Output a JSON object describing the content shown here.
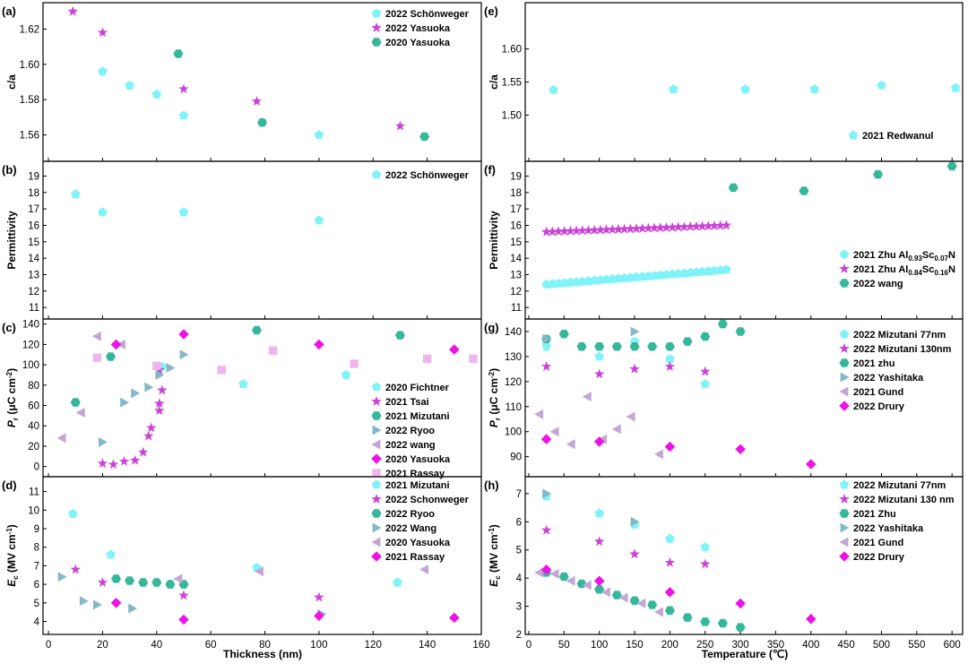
{
  "chart_data": [
    {
      "panel": "(a)",
      "type": "scatter",
      "ylabel": "c/a",
      "ylim": [
        1.545,
        1.635
      ],
      "yticks": [
        "1.56",
        "1.58",
        "1.60",
        "1.62"
      ],
      "yticks_num": [
        1.56,
        1.58,
        1.6,
        1.62
      ],
      "series": [
        {
          "name": "2022 Schönweger",
          "marker": "pentagon",
          "color": "#7ff3f7",
          "x": [
            20,
            30,
            40,
            50,
            100
          ],
          "y": [
            1.596,
            1.588,
            1.583,
            1.571,
            1.56
          ]
        },
        {
          "name": "2022 Yasuoka",
          "marker": "star",
          "color": "#c944d6",
          "x": [
            9,
            20,
            50,
            77,
            130
          ],
          "y": [
            1.63,
            1.618,
            1.586,
            1.579,
            1.565
          ]
        },
        {
          "name": "2020 Yasuoka",
          "marker": "hexagon",
          "color": "#36b79a",
          "x": [
            48,
            79,
            139
          ],
          "y": [
            1.606,
            1.567,
            1.559
          ]
        }
      ]
    },
    {
      "panel": "(b)",
      "type": "scatter",
      "ylabel": "Permittivity",
      "ylim": [
        10.3,
        19.9
      ],
      "yticks": [
        "11",
        "12",
        "13",
        "14",
        "15",
        "16",
        "17",
        "18",
        "19"
      ],
      "yticks_num": [
        11,
        12,
        13,
        14,
        15,
        16,
        17,
        18,
        19
      ],
      "series": [
        {
          "name": "2022 Schönweger",
          "marker": "pentagon",
          "color": "#7ff3f7",
          "x": [
            10,
            20,
            50,
            100
          ],
          "y": [
            17.9,
            16.8,
            16.8,
            16.3
          ]
        }
      ]
    },
    {
      "panel": "(c)",
      "type": "scatter",
      "ylabel": "Pr (μC cm-2)",
      "ylim": [
        -10,
        145
      ],
      "yticks": [
        "0",
        "20",
        "40",
        "60",
        "80",
        "100",
        "120",
        "140"
      ],
      "yticks_num": [
        0,
        20,
        40,
        60,
        80,
        100,
        120,
        140
      ],
      "series": [
        {
          "name": "2020 Fichtner",
          "marker": "pentagon",
          "color": "#7ff3f7",
          "x": [
            72,
            110,
            42
          ],
          "y": [
            81,
            90,
            98
          ]
        },
        {
          "name": "2021 Tsai",
          "marker": "star",
          "color": "#c944d6",
          "x": [
            20,
            24,
            28,
            32,
            35,
            37,
            38,
            41,
            41,
            42,
            41
          ],
          "y": [
            3,
            2,
            5,
            6,
            14,
            30,
            38,
            55,
            62,
            75,
            95
          ]
        },
        {
          "name": "2021 Mizutani",
          "marker": "hexagon",
          "color": "#36b79a",
          "x": [
            10,
            23,
            77,
            130
          ],
          "y": [
            63,
            108,
            134,
            129
          ]
        },
        {
          "name": "2022 Ryoo",
          "marker": "tri-right",
          "color": "#86b8c8",
          "x": [
            20,
            28,
            32,
            37,
            41,
            45,
            50
          ],
          "y": [
            24,
            63,
            72,
            78,
            90,
            97,
            110
          ]
        },
        {
          "name": "2022 wang",
          "marker": "tri-left",
          "color": "#c4a6d3",
          "x": [
            5,
            12,
            18,
            27
          ],
          "y": [
            28,
            53,
            128,
            120
          ]
        },
        {
          "name": "2020 Yasuoka",
          "marker": "diamond",
          "color": "#ee12e6",
          "x": [
            25,
            50,
            100,
            150
          ],
          "y": [
            120,
            130,
            120,
            115
          ]
        },
        {
          "name": "2021 Rassay",
          "marker": "square",
          "color": "#f0b4ee",
          "x": [
            18,
            40,
            64,
            83,
            113,
            140,
            157
          ],
          "y": [
            107,
            99,
            95,
            114,
            101,
            106,
            106
          ]
        }
      ]
    },
    {
      "panel": "(d)",
      "type": "scatter",
      "ylabel": "Ec (MV cm-1)",
      "ylim": [
        3.3,
        11.8
      ],
      "yticks": [
        "4",
        "5",
        "6",
        "7",
        "8",
        "9",
        "10",
        "11"
      ],
      "yticks_num": [
        4,
        5,
        6,
        7,
        8,
        9,
        10,
        11
      ],
      "series": [
        {
          "name": "2021 Mizutani",
          "marker": "pentagon",
          "color": "#7ff3f7",
          "x": [
            9,
            23,
            77,
            129
          ],
          "y": [
            9.8,
            7.6,
            6.9,
            6.1
          ]
        },
        {
          "name": "2022 Schonweger",
          "marker": "star",
          "color": "#c944d6",
          "x": [
            10,
            20,
            50,
            100
          ],
          "y": [
            6.8,
            6.1,
            5.4,
            5.3
          ]
        },
        {
          "name": "2022 Ryoo",
          "marker": "hexagon",
          "color": "#36b79a",
          "x": [
            25,
            30,
            35,
            40,
            45,
            50
          ],
          "y": [
            6.3,
            6.2,
            6.1,
            6.1,
            6.0,
            6.0
          ]
        },
        {
          "name": "2022 Wang",
          "marker": "tri-right",
          "color": "#86b8c8",
          "x": [
            5,
            13,
            18,
            31,
            101
          ],
          "y": [
            6.4,
            5.1,
            4.9,
            4.7,
            4.4
          ]
        },
        {
          "name": "2020 Yasuoka",
          "marker": "tri-left",
          "color": "#c4a6d3",
          "x": [
            48,
            78,
            139
          ],
          "y": [
            6.3,
            6.7,
            6.8
          ]
        },
        {
          "name": "2021 Rassay",
          "marker": "diamond",
          "color": "#ee12e6",
          "x": [
            25,
            50,
            100,
            150
          ],
          "y": [
            5.0,
            4.1,
            4.3,
            4.2
          ]
        }
      ]
    },
    {
      "panel": "(e)",
      "type": "scatter",
      "ylabel": "c/a",
      "ylim": [
        1.43,
        1.67
      ],
      "yticks": [
        "1.50",
        "1.55",
        "1.60"
      ],
      "yticks_num": [
        1.5,
        1.55,
        1.6
      ],
      "series": [
        {
          "name": "2021 Redwanul",
          "marker": "pentagon",
          "color": "#7ff3f7",
          "x": [
            35,
            205,
            307,
            405,
            500,
            605
          ],
          "y": [
            1.538,
            1.539,
            1.539,
            1.539,
            1.545,
            1.541
          ]
        }
      ]
    },
    {
      "panel": "(f)",
      "type": "scatter",
      "ylabel": "Permittivity",
      "ylim": [
        10.3,
        19.9
      ],
      "yticks": [
        "11",
        "12",
        "13",
        "14",
        "15",
        "16",
        "17",
        "18",
        "19"
      ],
      "yticks_num": [
        11,
        12,
        13,
        14,
        15,
        16,
        17,
        18,
        19
      ],
      "series": [
        {
          "name": "2021 Zhu Al0.93Sc0.07N",
          "name_parts": [
            "2021 Zhu Al",
            "0.93",
            "Sc",
            "0.07",
            "N"
          ],
          "marker": "pentagon",
          "color": "#7ff3f7",
          "x_range": [
            25,
            280
          ],
          "y_range": [
            12.4,
            13.3
          ],
          "n": 31
        },
        {
          "name": "2021 Zhu Al0.84Sc0.16N",
          "name_parts": [
            "2021 Zhu Al",
            "0.84",
            "Sc",
            "0.16",
            "N"
          ],
          "marker": "star",
          "color": "#c944d6",
          "x_range": [
            25,
            280
          ],
          "y_range": [
            15.6,
            16.0
          ],
          "n": 31
        },
        {
          "name": "2022 wang",
          "marker": "hexagon",
          "color": "#36b79a",
          "x": [
            290,
            390,
            495,
            600
          ],
          "y": [
            18.3,
            18.1,
            19.1,
            19.6
          ]
        }
      ]
    },
    {
      "panel": "(g)",
      "type": "scatter",
      "ylabel": "Pr (μC cm-2)",
      "ylim": [
        82,
        145
      ],
      "yticks": [
        "90",
        "100",
        "110",
        "120",
        "130",
        "140"
      ],
      "yticks_num": [
        90,
        100,
        110,
        120,
        130,
        140
      ],
      "series": [
        {
          "name": "2022 Mizutani 77nm",
          "marker": "pentagon",
          "color": "#7ff3f7",
          "x": [
            25,
            100,
            150,
            200,
            250
          ],
          "y": [
            134,
            130,
            136,
            129,
            119
          ]
        },
        {
          "name": "2022 Mizutani 130nm",
          "marker": "star",
          "color": "#c944d6",
          "x": [
            25,
            100,
            150,
            200,
            250
          ],
          "y": [
            126,
            123,
            125,
            126,
            124
          ]
        },
        {
          "name": "2021 zhu",
          "marker": "hexagon",
          "color": "#36b79a",
          "x": [
            25,
            50,
            75,
            100,
            125,
            150,
            175,
            200,
            225,
            250,
            275,
            300
          ],
          "y": [
            137,
            139,
            134,
            134,
            134,
            134,
            134,
            134,
            136,
            138,
            143,
            140
          ]
        },
        {
          "name": "2022 Yashitaka",
          "marker": "tri-right",
          "color": "#86b8c8",
          "x": [
            25,
            150
          ],
          "y": [
            137,
            140
          ]
        },
        {
          "name": "2021 Gund",
          "marker": "tri-left",
          "color": "#c4a6d3",
          "x": [
            15,
            37,
            60,
            83,
            105,
            125,
            145,
            185
          ],
          "y": [
            107,
            100,
            95,
            114,
            97,
            101,
            106,
            91
          ]
        },
        {
          "name": "2022 Drury",
          "marker": "diamond",
          "color": "#ee12e6",
          "x": [
            25,
            100,
            200,
            300,
            400
          ],
          "y": [
            97,
            96,
            94,
            93,
            87
          ]
        }
      ]
    },
    {
      "panel": "(h)",
      "type": "scatter",
      "ylabel": "Ec (MV cm-1)",
      "ylim": [
        2.0,
        7.6
      ],
      "yticks": [
        "2",
        "3",
        "4",
        "5",
        "6",
        "7"
      ],
      "yticks_num": [
        2,
        3,
        4,
        5,
        6,
        7
      ],
      "series": [
        {
          "name": "2022 Mizutani 77nm",
          "marker": "pentagon",
          "color": "#7ff3f7",
          "x": [
            25,
            100,
            150,
            200,
            250
          ],
          "y": [
            6.9,
            6.3,
            5.9,
            5.4,
            5.1
          ]
        },
        {
          "name": "2022 Mizutani 130 nm",
          "marker": "star",
          "color": "#c944d6",
          "x": [
            25,
            100,
            150,
            200,
            250
          ],
          "y": [
            5.7,
            5.3,
            4.85,
            4.55,
            4.5
          ]
        },
        {
          "name": "2021 Zhu",
          "marker": "hexagon",
          "color": "#36b79a",
          "x": [
            25,
            50,
            75,
            100,
            125,
            150,
            175,
            200,
            225,
            250,
            275,
            300
          ],
          "y": [
            4.2,
            4.05,
            3.8,
            3.6,
            3.4,
            3.2,
            3.05,
            2.85,
            2.6,
            2.45,
            2.4,
            2.25
          ]
        },
        {
          "name": "2022 Yashitaka",
          "marker": "tri-right",
          "color": "#86b8c8",
          "x": [
            25,
            150
          ],
          "y": [
            7.0,
            6.0
          ]
        },
        {
          "name": "2021 Gund",
          "marker": "tri-left",
          "color": "#c4a6d3",
          "x": [
            15,
            37,
            60,
            83,
            110,
            135,
            160,
            185
          ],
          "y": [
            4.2,
            4.15,
            3.9,
            3.75,
            3.5,
            3.3,
            3.1,
            2.8
          ]
        },
        {
          "name": "2022 Drury",
          "marker": "diamond",
          "color": "#ee12e6",
          "x": [
            25,
            100,
            200,
            300,
            400
          ],
          "y": [
            4.3,
            3.9,
            3.5,
            3.1,
            2.55
          ]
        }
      ]
    }
  ],
  "axes": {
    "left": {
      "xlabel": "Thickness (nm)",
      "xlim": [
        -2,
        160
      ],
      "xticks": [
        "0",
        "20",
        "40",
        "60",
        "80",
        "100",
        "120",
        "140",
        "160"
      ],
      "xticks_num": [
        0,
        20,
        40,
        60,
        80,
        100,
        120,
        140,
        160
      ]
    },
    "right": {
      "xlabel": "Temperature (℃)",
      "xlim": [
        -5,
        615
      ],
      "xticks": [
        "0",
        "50",
        "100",
        "150",
        "200",
        "250",
        "300",
        "350",
        "400",
        "450",
        "500",
        "550",
        "600"
      ],
      "xticks_num": [
        0,
        50,
        100,
        150,
        200,
        250,
        300,
        350,
        400,
        450,
        500,
        550,
        600
      ]
    }
  }
}
